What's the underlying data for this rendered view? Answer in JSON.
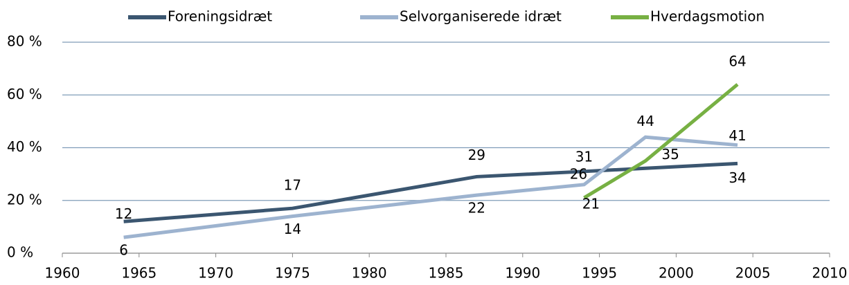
{
  "chart_data": {
    "type": "line",
    "series": [
      {
        "name": "Foreningsidræt",
        "color": "#3b5670",
        "x": [
          1964,
          1975,
          1987,
          1994,
          2004
        ],
        "values": [
          12,
          17,
          29,
          31,
          34
        ]
      },
      {
        "name": "Selvorganiserede idræt",
        "color": "#9db3cf",
        "x": [
          1964,
          1975,
          1987,
          1994,
          1998,
          2004
        ],
        "values": [
          6,
          14,
          22,
          26,
          44,
          41
        ]
      },
      {
        "name": "Hverdagsmotion",
        "color": "#77b043",
        "x": [
          1994,
          1998,
          2004
        ],
        "values": [
          21,
          35,
          64
        ]
      }
    ],
    "xlim": [
      1960,
      2010
    ],
    "xticks": [
      1960,
      1965,
      1970,
      1975,
      1980,
      1985,
      1990,
      1995,
      2000,
      2005,
      2010
    ],
    "ylim": [
      0,
      80
    ],
    "yticks": [
      {
        "value": 0,
        "label": "0 %"
      },
      {
        "value": 20,
        "label": "20 %"
      },
      {
        "value": 40,
        "label": "40 %"
      },
      {
        "value": 60,
        "label": "60 %"
      },
      {
        "value": 80,
        "label": "80 %"
      }
    ],
    "grid": true,
    "legend": "top"
  }
}
